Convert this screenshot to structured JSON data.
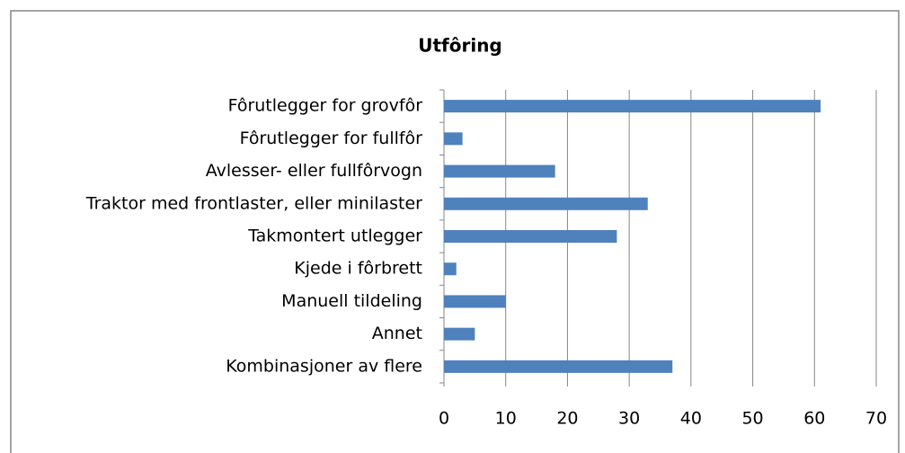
{
  "chart_data": {
    "type": "bar",
    "orientation": "horizontal",
    "title": "Utfôring",
    "categories": [
      "Fôrutlegger for grovfôr",
      "Fôrutlegger for fullfôr",
      "Avlesser- eller fullfôrvogn",
      "Traktor med frontlaster, eller minilaster",
      "Takmontert utlegger",
      "Kjede i fôrbrett",
      "Manuell tildeling",
      "Annet",
      "Kombinasjoner av flere"
    ],
    "values": [
      61,
      3,
      18,
      33,
      28,
      2,
      10,
      5,
      37
    ],
    "color": "#4f81bd",
    "xlim": [
      0,
      70
    ],
    "xticks": [
      0,
      10,
      20,
      30,
      40,
      50,
      60,
      70
    ],
    "grid": true
  }
}
